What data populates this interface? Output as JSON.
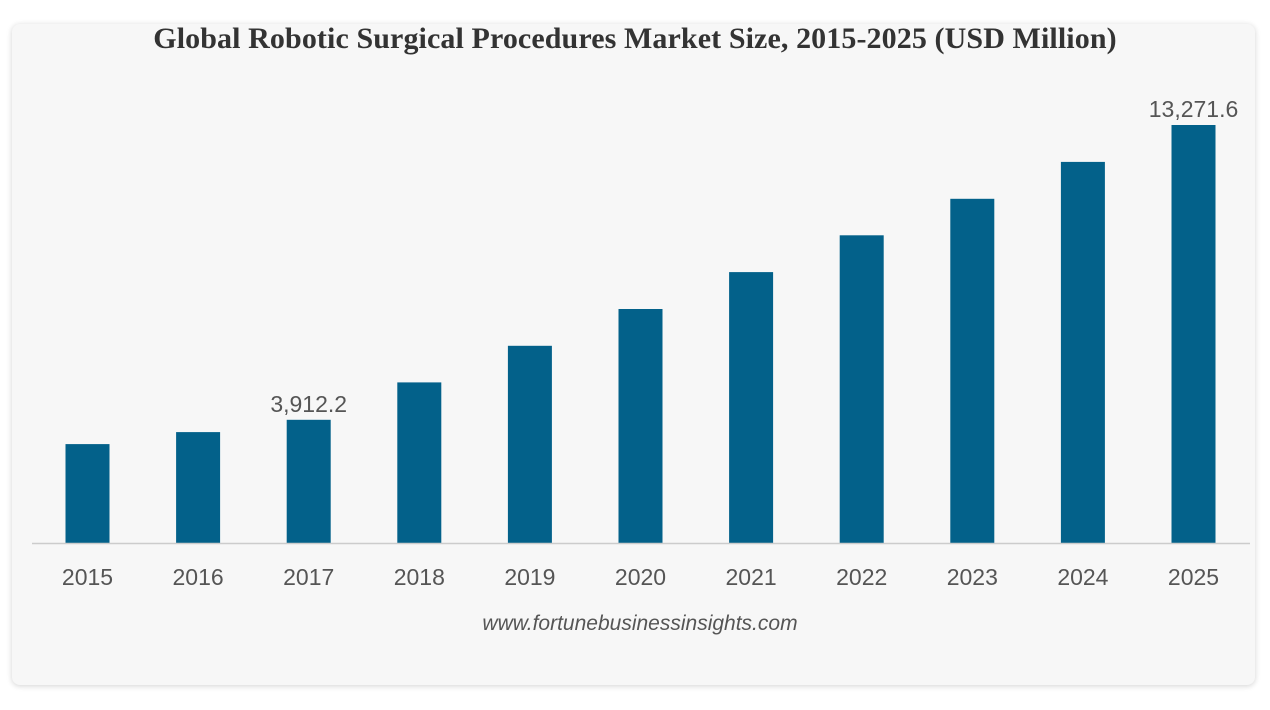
{
  "chart_data": {
    "type": "bar",
    "title": "Global Robotic Surgical Procedures Market Size, 2015-2025 (USD Million)",
    "categories": [
      "2015",
      "2016",
      "2017",
      "2018",
      "2019",
      "2020",
      "2021",
      "2022",
      "2023",
      "2024",
      "2025"
    ],
    "values": [
      3140,
      3520,
      3912.2,
      5100,
      6260,
      7430,
      8600,
      9770,
      10930,
      12100,
      13271.6
    ],
    "data_labels": [
      {
        "index": 2,
        "text": "3,912.2"
      },
      {
        "index": 10,
        "text": "13,271.6"
      }
    ],
    "xlabel": "",
    "ylabel": "",
    "ylim": [
      0,
      13271.6
    ],
    "grid": false,
    "legend": "none",
    "bar_color": "#03618a",
    "axis_color": "#cccccc"
  },
  "source": "www.fortunebusinessinsights.com"
}
